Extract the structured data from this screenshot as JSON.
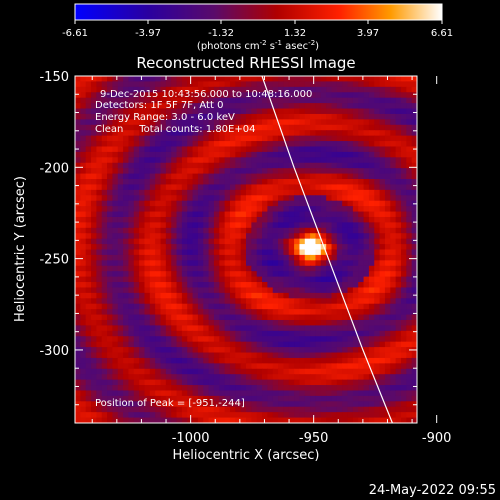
{
  "colorbar": {
    "tick_labels": [
      "-6.61",
      "-3.97",
      "-1.32",
      "1.32",
      "3.97",
      "6.61"
    ],
    "range": [
      -6.61,
      6.61
    ],
    "units_prefix": "(photons cm",
    "units_exp1": "-2",
    "units_mid": " s",
    "units_exp2": "-1",
    "units_mid2": " asec",
    "units_exp3": "-2",
    "units_suffix": ")",
    "colors": [
      "#0000ff",
      "#3b0f70",
      "#9b0000",
      "#ff2a00",
      "#ffb000",
      "#ffffff"
    ]
  },
  "plot": {
    "title": "Reconstructed RHESSI Image",
    "annotation_lines": [
      "9-Dec-2015 10:43:56.000 to 10:48:16.000",
      "Detectors: 1F 5F 7F, Att 0",
      "Energy Range: 3.0 - 6.0 keV",
      "Clean     Total counts: 1.80E+04"
    ],
    "peak_label": "Position of Peak = [-951,-244]",
    "timestamp": "24-May-2022 09:55"
  },
  "chart_data": {
    "type": "heatmap",
    "title": "Reconstructed RHESSI Image",
    "xlabel": "Heliocentric X (arcsec)",
    "ylabel": "Heliocentric Y (arcsec)",
    "xlim": [
      -1047,
      -908
    ],
    "ylim": [
      -340,
      -150
    ],
    "x_ticks": [
      -1000,
      -950,
      -900
    ],
    "x_tick_labels": [
      "-1000",
      "-950",
      "-900"
    ],
    "y_ticks": [
      -150,
      -200,
      -250,
      -300
    ],
    "y_tick_labels": [
      "-150",
      "-200",
      "-250",
      "-300"
    ],
    "peak": [
      -951,
      -244
    ],
    "value_range": [
      -6.61,
      6.61
    ],
    "limb_curve": [
      [
        -971,
        -150
      ],
      [
        -958,
        -200
      ],
      [
        -944,
        -250
      ],
      [
        -930,
        -300
      ],
      [
        -918,
        -340
      ]
    ]
  }
}
